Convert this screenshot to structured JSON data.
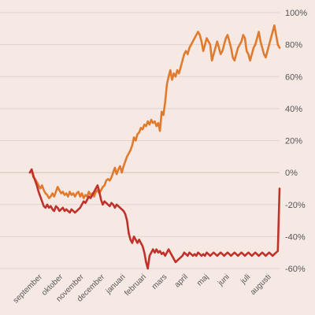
{
  "chart_data": {
    "type": "line",
    "x_labels": [
      "september",
      "oktober",
      "november",
      "december",
      "januari",
      "februari",
      "mars",
      "april",
      "maj",
      "juni",
      "juli",
      "augusti"
    ],
    "y_ticks": [
      -60,
      -40,
      -20,
      0,
      20,
      40,
      60,
      80,
      100
    ],
    "y_tick_labels": [
      "-60%",
      "-40%",
      "-20%",
      "0%",
      "20%",
      "40%",
      "60%",
      "80%",
      "100%"
    ],
    "ylim": [
      -60,
      100
    ],
    "grid": true,
    "series": [
      {
        "color": "#e07b2e",
        "points": [
          [
            0,
            0
          ],
          [
            0.1,
            2
          ],
          [
            0.2,
            -3
          ],
          [
            0.3,
            -4
          ],
          [
            0.4,
            -6
          ],
          [
            0.5,
            -8
          ],
          [
            0.6,
            -10
          ],
          [
            0.7,
            -8
          ],
          [
            0.8,
            -11
          ],
          [
            0.9,
            -13
          ],
          [
            1.0,
            -14
          ],
          [
            1.1,
            -16
          ],
          [
            1.2,
            -15
          ],
          [
            1.3,
            -13
          ],
          [
            1.4,
            -15
          ],
          [
            1.5,
            -12
          ],
          [
            1.6,
            -9
          ],
          [
            1.7,
            -11
          ],
          [
            1.8,
            -13
          ],
          [
            1.9,
            -12
          ],
          [
            2.0,
            -14
          ],
          [
            2.1,
            -13
          ],
          [
            2.2,
            -15
          ],
          [
            2.3,
            -12
          ],
          [
            2.4,
            -14
          ],
          [
            2.5,
            -13
          ],
          [
            2.6,
            -15
          ],
          [
            2.7,
            -13
          ],
          [
            2.8,
            -12
          ],
          [
            2.9,
            -15
          ],
          [
            3.0,
            -13
          ],
          [
            3.1,
            -16
          ],
          [
            3.2,
            -14
          ],
          [
            3.3,
            -15
          ],
          [
            3.4,
            -12
          ],
          [
            3.5,
            -14
          ],
          [
            3.6,
            -13
          ],
          [
            3.7,
            -15
          ],
          [
            3.8,
            -12
          ],
          [
            3.9,
            -11
          ],
          [
            4.0,
            -13
          ],
          [
            4.1,
            -11
          ],
          [
            4.2,
            -9
          ],
          [
            4.3,
            -8
          ],
          [
            4.4,
            -5
          ],
          [
            4.5,
            -4
          ],
          [
            4.6,
            -5
          ],
          [
            4.7,
            -3
          ],
          [
            4.8,
            0
          ],
          [
            4.9,
            3
          ],
          [
            5.0,
            -1
          ],
          [
            5.1,
            2
          ],
          [
            5.2,
            4
          ],
          [
            5.3,
            0
          ],
          [
            5.4,
            4
          ],
          [
            5.5,
            7
          ],
          [
            5.6,
            10
          ],
          [
            5.7,
            12
          ],
          [
            5.8,
            14
          ],
          [
            5.9,
            17
          ],
          [
            6.0,
            22
          ],
          [
            6.1,
            20
          ],
          [
            6.2,
            24
          ],
          [
            6.3,
            25
          ],
          [
            6.4,
            28
          ],
          [
            6.5,
            27
          ],
          [
            6.6,
            30
          ],
          [
            6.7,
            29
          ],
          [
            6.8,
            32
          ],
          [
            6.9,
            30
          ],
          [
            7.0,
            33
          ],
          [
            7.1,
            31
          ],
          [
            7.2,
            32
          ],
          [
            7.3,
            29
          ],
          [
            7.4,
            31
          ],
          [
            7.5,
            26
          ],
          [
            7.6,
            38
          ],
          [
            7.7,
            36
          ],
          [
            7.8,
            44
          ],
          [
            7.9,
            55
          ],
          [
            8.0,
            60
          ],
          [
            8.1,
            64
          ],
          [
            8.2,
            58
          ],
          [
            8.3,
            62
          ],
          [
            8.4,
            60
          ],
          [
            8.5,
            64
          ],
          [
            8.6,
            62
          ],
          [
            8.7,
            66
          ],
          [
            8.8,
            70
          ],
          [
            8.9,
            74
          ],
          [
            9.0,
            76
          ],
          [
            9.1,
            74
          ],
          [
            9.2,
            78
          ],
          [
            9.3,
            80
          ],
          [
            9.4,
            82
          ],
          [
            9.5,
            84
          ],
          [
            9.6,
            86
          ],
          [
            9.7,
            88
          ],
          [
            9.8,
            86
          ],
          [
            9.9,
            82
          ],
          [
            10.0,
            76
          ],
          [
            10.1,
            80
          ],
          [
            10.2,
            84
          ],
          [
            10.3,
            82
          ],
          [
            10.4,
            80
          ],
          [
            10.5,
            70
          ],
          [
            10.6,
            74
          ],
          [
            10.7,
            78
          ],
          [
            10.8,
            82
          ],
          [
            10.9,
            78
          ],
          [
            11.0,
            74
          ],
          [
            11.1,
            76
          ],
          [
            11.2,
            80
          ],
          [
            11.3,
            84
          ],
          [
            11.4,
            86
          ],
          [
            11.5,
            82
          ],
          [
            11.6,
            78
          ],
          [
            11.7,
            72
          ],
          [
            11.8,
            70
          ],
          [
            11.9,
            74
          ],
          [
            12.0,
            78
          ],
          [
            12.1,
            80
          ],
          [
            12.2,
            82
          ],
          [
            12.3,
            86
          ],
          [
            12.4,
            84
          ],
          [
            12.5,
            76
          ],
          [
            12.6,
            74
          ],
          [
            12.7,
            70
          ],
          [
            12.8,
            74
          ],
          [
            12.9,
            78
          ],
          [
            13.0,
            80
          ],
          [
            13.1,
            84
          ],
          [
            13.2,
            88
          ],
          [
            13.3,
            82
          ],
          [
            13.4,
            78
          ],
          [
            13.5,
            74
          ],
          [
            13.6,
            72
          ],
          [
            13.7,
            76
          ],
          [
            13.8,
            80
          ],
          [
            13.9,
            84
          ],
          [
            14.0,
            88
          ],
          [
            14.1,
            92
          ],
          [
            14.2,
            86
          ],
          [
            14.3,
            80
          ],
          [
            14.4,
            78
          ]
        ]
      },
      {
        "color": "#c0312b",
        "points": [
          [
            0,
            0
          ],
          [
            0.1,
            2
          ],
          [
            0.2,
            -2
          ],
          [
            0.3,
            -5
          ],
          [
            0.4,
            -8
          ],
          [
            0.5,
            -12
          ],
          [
            0.6,
            -15
          ],
          [
            0.7,
            -18
          ],
          [
            0.8,
            -21
          ],
          [
            0.9,
            -22
          ],
          [
            1.0,
            -20
          ],
          [
            1.1,
            -22
          ],
          [
            1.2,
            -21
          ],
          [
            1.3,
            -23
          ],
          [
            1.4,
            -24
          ],
          [
            1.5,
            -21
          ],
          [
            1.6,
            -22
          ],
          [
            1.7,
            -24
          ],
          [
            1.8,
            -23
          ],
          [
            1.9,
            -22
          ],
          [
            2.0,
            -24
          ],
          [
            2.1,
            -23
          ],
          [
            2.2,
            -24
          ],
          [
            2.3,
            -25
          ],
          [
            2.4,
            -23
          ],
          [
            2.5,
            -24
          ],
          [
            2.6,
            -25
          ],
          [
            2.7,
            -24
          ],
          [
            2.8,
            -23
          ],
          [
            2.9,
            -22
          ],
          [
            3.0,
            -20
          ],
          [
            3.1,
            -18
          ],
          [
            3.2,
            -19
          ],
          [
            3.3,
            -17
          ],
          [
            3.4,
            -15
          ],
          [
            3.5,
            -16
          ],
          [
            3.6,
            -14
          ],
          [
            3.7,
            -12
          ],
          [
            3.8,
            -10
          ],
          [
            3.9,
            -8
          ],
          [
            4.0,
            -12
          ],
          [
            4.1,
            -17
          ],
          [
            4.2,
            -20
          ],
          [
            4.3,
            -18
          ],
          [
            4.4,
            -19
          ],
          [
            4.5,
            -20
          ],
          [
            4.6,
            -21
          ],
          [
            4.7,
            -19
          ],
          [
            4.8,
            -20
          ],
          [
            4.9,
            -22
          ],
          [
            5.0,
            -20
          ],
          [
            5.1,
            -21
          ],
          [
            5.2,
            -22
          ],
          [
            5.3,
            -23
          ],
          [
            5.4,
            -24
          ],
          [
            5.5,
            -26
          ],
          [
            5.6,
            -30
          ],
          [
            5.7,
            -38
          ],
          [
            5.8,
            -42
          ],
          [
            5.9,
            -44
          ],
          [
            6.0,
            -40
          ],
          [
            6.1,
            -42
          ],
          [
            6.2,
            -44
          ],
          [
            6.3,
            -42
          ],
          [
            6.4,
            -44
          ],
          [
            6.5,
            -46
          ],
          [
            6.6,
            -50
          ],
          [
            6.7,
            -56
          ],
          [
            6.8,
            -60
          ],
          [
            6.9,
            -52
          ],
          [
            7.0,
            -50
          ],
          [
            7.1,
            -48
          ],
          [
            7.2,
            -50
          ],
          [
            7.3,
            -48
          ],
          [
            7.4,
            -50
          ],
          [
            7.5,
            -49
          ],
          [
            7.6,
            -51
          ],
          [
            7.7,
            -50
          ],
          [
            7.8,
            -52
          ],
          [
            7.9,
            -50
          ],
          [
            8.0,
            -48
          ],
          [
            8.1,
            -50
          ],
          [
            8.2,
            -52
          ],
          [
            8.3,
            -54
          ],
          [
            8.4,
            -56
          ],
          [
            8.5,
            -55
          ],
          [
            8.6,
            -54
          ],
          [
            8.7,
            -53
          ],
          [
            8.8,
            -52
          ],
          [
            8.9,
            -50
          ],
          [
            9.0,
            -51
          ],
          [
            9.1,
            -52
          ],
          [
            9.2,
            -50
          ],
          [
            9.3,
            -51
          ],
          [
            9.4,
            -52
          ],
          [
            9.5,
            -51
          ],
          [
            9.6,
            -52
          ],
          [
            9.7,
            -50
          ],
          [
            9.8,
            -51
          ],
          [
            9.9,
            -52
          ],
          [
            10.0,
            -51
          ],
          [
            10.1,
            -52
          ],
          [
            10.2,
            -50
          ],
          [
            10.3,
            -51
          ],
          [
            10.4,
            -52
          ],
          [
            10.5,
            -51
          ],
          [
            10.6,
            -50
          ],
          [
            10.7,
            -51
          ],
          [
            10.8,
            -52
          ],
          [
            10.9,
            -51
          ],
          [
            11.0,
            -50
          ],
          [
            11.1,
            -51
          ],
          [
            11.2,
            -52
          ],
          [
            11.3,
            -51
          ],
          [
            11.4,
            -50
          ],
          [
            11.5,
            -51
          ],
          [
            11.6,
            -52
          ],
          [
            11.7,
            -51
          ],
          [
            11.8,
            -50
          ],
          [
            11.9,
            -51
          ],
          [
            12.0,
            -52
          ],
          [
            12.1,
            -51
          ],
          [
            12.2,
            -50
          ],
          [
            12.3,
            -51
          ],
          [
            12.4,
            -52
          ],
          [
            12.5,
            -51
          ],
          [
            12.6,
            -50
          ],
          [
            12.7,
            -51
          ],
          [
            12.8,
            -52
          ],
          [
            12.9,
            -51
          ],
          [
            13.0,
            -50
          ],
          [
            13.1,
            -51
          ],
          [
            13.2,
            -52
          ],
          [
            13.3,
            -51
          ],
          [
            13.4,
            -50
          ],
          [
            13.5,
            -51
          ],
          [
            13.6,
            -52
          ],
          [
            13.7,
            -51
          ],
          [
            13.8,
            -50
          ],
          [
            13.9,
            -51
          ],
          [
            14.0,
            -52
          ],
          [
            14.1,
            -51
          ],
          [
            14.2,
            -50
          ],
          [
            14.3,
            -49
          ],
          [
            14.4,
            -10
          ]
        ]
      }
    ]
  }
}
